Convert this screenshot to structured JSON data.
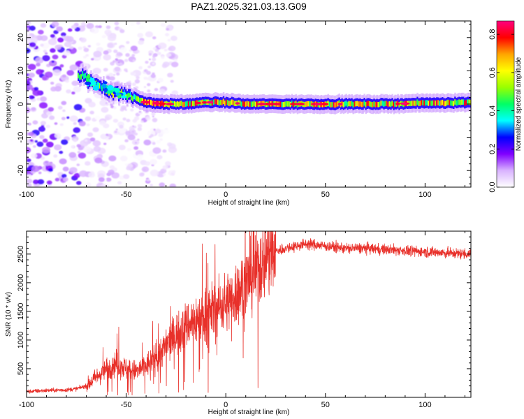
{
  "title": "PAZ1.2025.321.03.13.G09",
  "chart_data": [
    {
      "type": "heatmap",
      "title": "PAZ1.2025.321.03.13.G09",
      "xlabel": "Height of straight line (km)",
      "ylabel": "Frequency (Hz)",
      "xlim": [
        -100,
        123
      ],
      "ylim": [
        -25,
        25
      ],
      "xticks": [
        -100,
        -50,
        0,
        50,
        100
      ],
      "yticks": [
        -20,
        -10,
        0,
        10,
        20
      ],
      "xtick_labels": [
        "-100",
        "-50",
        "0",
        "50",
        "100"
      ],
      "ytick_labels": [
        "-20",
        "-10",
        "0",
        "10",
        "20"
      ],
      "colorbar": {
        "label": "Normalized spectral amplitude",
        "range": [
          0,
          0.87
        ],
        "ticks": [
          0.0,
          0.2,
          0.4,
          0.6,
          0.8
        ],
        "tick_labels": [
          "0.0",
          "0.2",
          "0.4",
          "0.6",
          "0.8"
        ],
        "colors": [
          "#ffffff",
          "#d9b3ff",
          "#8000ff",
          "#0000ff",
          "#00ffff",
          "#00ff66",
          "#99ff00",
          "#ffff00",
          "#ffa500",
          "#ff0000",
          "#ff0080"
        ]
      },
      "ridge": {
        "description_points_x": [
          -72,
          -65,
          -58,
          -52,
          -46,
          -40,
          -30,
          -20,
          -10,
          0,
          10,
          20,
          40,
          60,
          80,
          100,
          123
        ],
        "description_points_y": [
          8,
          6,
          4,
          3,
          2,
          0.5,
          0,
          0,
          0.5,
          0.5,
          0,
          0,
          0,
          0,
          0,
          0.3,
          0.5
        ]
      }
    },
    {
      "type": "line",
      "xlabel": "Height of straight line (km)",
      "ylabel": "SNR (10 * v/v)",
      "xlim": [
        -100,
        123
      ],
      "ylim": [
        0,
        2900
      ],
      "xticks": [
        -100,
        -50,
        0,
        50,
        100
      ],
      "yticks": [
        500,
        1000,
        1500,
        2000,
        2500
      ],
      "xtick_labels": [
        "-100",
        "-50",
        "0",
        "50",
        "100"
      ],
      "ytick_labels": [
        "500",
        "1000",
        "1500",
        "2000",
        "2500"
      ],
      "series": [
        {
          "name": "SNR",
          "color": "#e8302a",
          "x": [
            -100,
            -90,
            -80,
            -75,
            -70,
            -65,
            -60,
            -55,
            -50,
            -45,
            -40,
            -35,
            -30,
            -25,
            -20,
            -15,
            -10,
            -5,
            0,
            5,
            10,
            15,
            20,
            25,
            30,
            40,
            50,
            60,
            70,
            80,
            90,
            100,
            110,
            123
          ],
          "y": [
            100,
            120,
            130,
            150,
            200,
            350,
            500,
            600,
            500,
            450,
            550,
            700,
            900,
            1100,
            1250,
            1350,
            1450,
            1550,
            1650,
            1800,
            2000,
            2200,
            2450,
            2550,
            2600,
            2680,
            2640,
            2600,
            2600,
            2580,
            2560,
            2540,
            2520,
            2500
          ]
        }
      ]
    }
  ]
}
